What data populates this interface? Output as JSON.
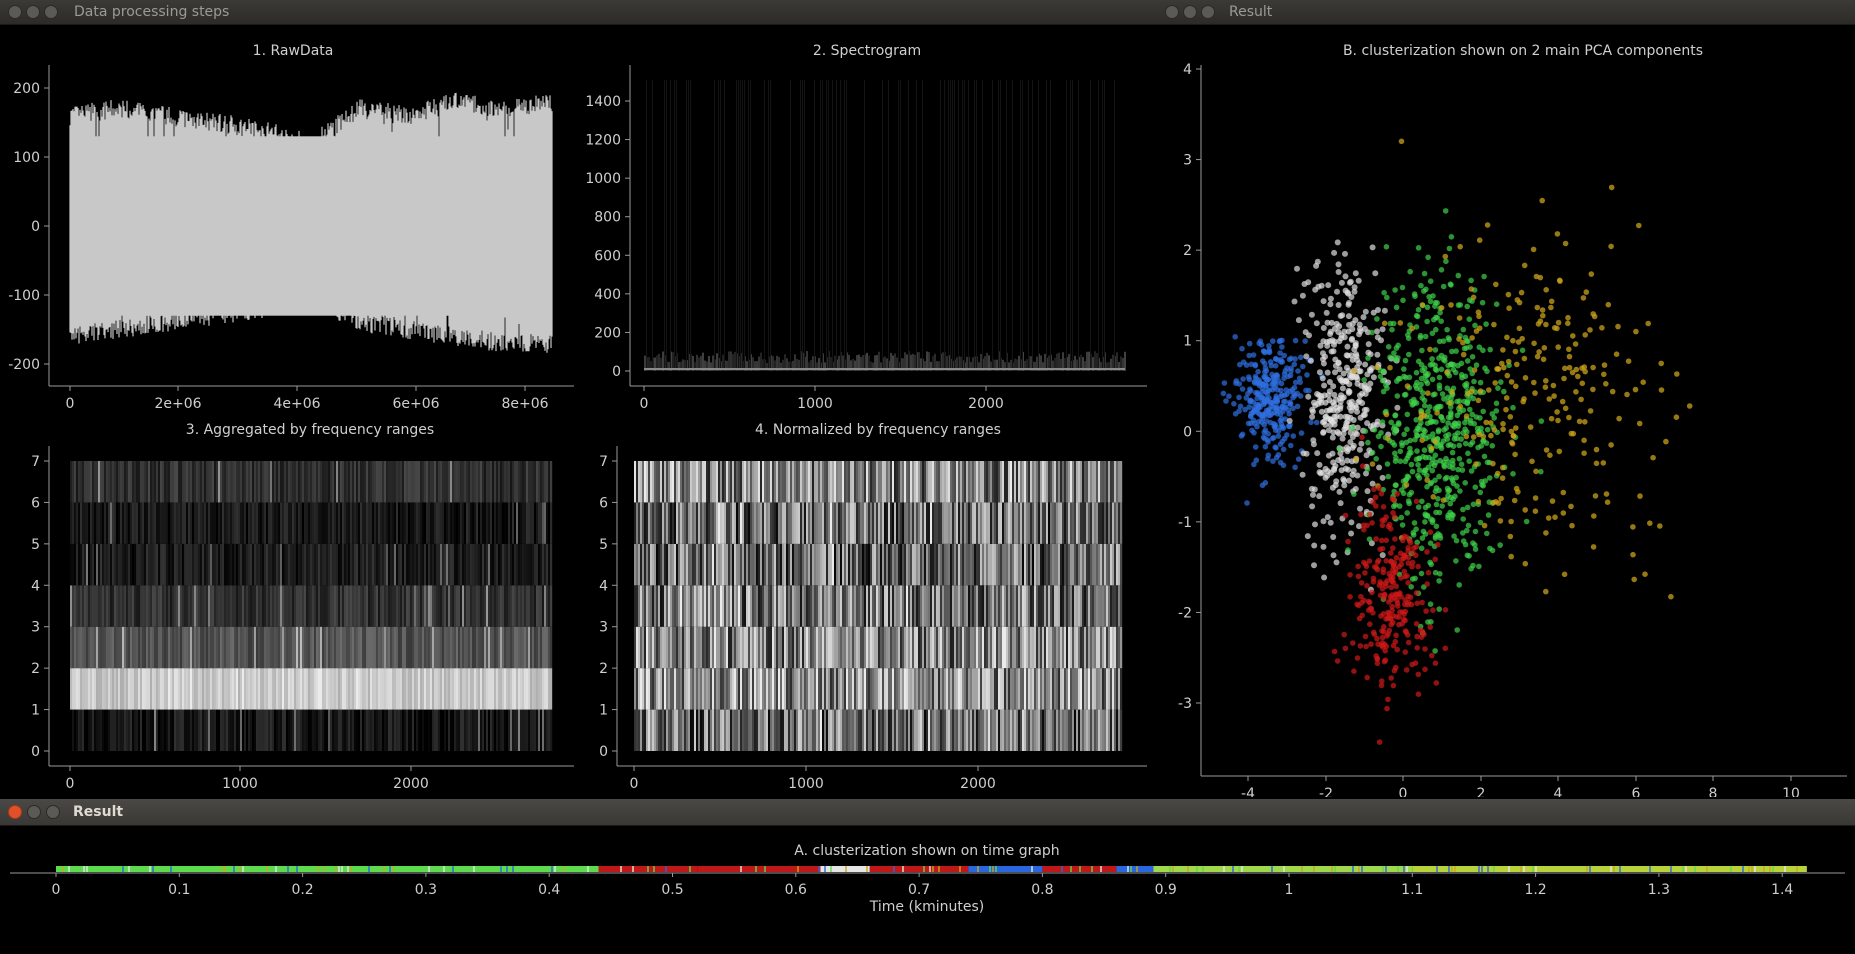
{
  "windows": {
    "steps": {
      "title": "Data processing steps"
    },
    "result_top": {
      "title": "Result"
    },
    "result_bottom": {
      "title": "Result"
    }
  },
  "plots": {
    "raw": {
      "title": "1. RawData",
      "yticks": [
        "200",
        "100",
        "0",
        "-100",
        "-200"
      ],
      "xticks": [
        "0",
        "2e+06",
        "4e+06",
        "6e+06",
        "8e+06"
      ]
    },
    "spectrogram": {
      "title": "2. Spectrogram",
      "yticks": [
        "1400",
        "1200",
        "1000",
        "800",
        "600",
        "400",
        "200",
        "0"
      ],
      "xticks": [
        "0",
        "1000",
        "2000"
      ]
    },
    "aggregated": {
      "title": "3. Aggregated by frequency ranges",
      "yticks": [
        "7",
        "6",
        "5",
        "4",
        "3",
        "2",
        "1",
        "0"
      ],
      "xticks": [
        "0",
        "1000",
        "2000"
      ]
    },
    "normalized": {
      "title": "4. Normalized by frequency ranges",
      "yticks": [
        "7",
        "6",
        "5",
        "4",
        "3",
        "2",
        "1",
        "0"
      ],
      "xticks": [
        "0",
        "1000",
        "2000"
      ]
    },
    "pca": {
      "title": "B. clusterization shown on 2 main PCA components",
      "yticks": [
        "4",
        "3",
        "2",
        "1",
        "0",
        "-1",
        "-2",
        "-3"
      ],
      "xticks": [
        "-4",
        "-2",
        "0",
        "2",
        "4",
        "6",
        "8",
        "10"
      ]
    },
    "timeline": {
      "title": "A. clusterization shown on time graph",
      "xlabel": "Time (kminutes)",
      "xticks": [
        "0",
        "0.1",
        "0.2",
        "0.3",
        "0.4",
        "0.5",
        "0.6",
        "0.7",
        "0.8",
        "0.9",
        "1",
        "1.1",
        "1.2",
        "1.3",
        "1.4"
      ]
    }
  },
  "chart_data": [
    {
      "type": "line",
      "title": "1. RawData",
      "x_range": [
        0,
        8500000
      ],
      "ylim": [
        -210,
        210
      ],
      "envelope_upper_approx": [
        150,
        160,
        150,
        140,
        130,
        110,
        160,
        150,
        170,
        160,
        170
      ],
      "envelope_lower_approx": [
        -150,
        -140,
        -130,
        -120,
        -110,
        -90,
        -130,
        -140,
        -150,
        -160,
        -160
      ]
    },
    {
      "type": "heatmap",
      "title": "2. Spectrogram",
      "x_range": [
        0,
        2800
      ],
      "y_range": [
        0,
        1500
      ]
    },
    {
      "type": "heatmap",
      "title": "3. Aggregated by frequency ranges",
      "x_range": [
        0,
        2800
      ],
      "y_range": [
        0,
        7
      ],
      "band_brightness": [
        0.1,
        0.85,
        0.35,
        0.2,
        0.12,
        0.1,
        0.2
      ]
    },
    {
      "type": "heatmap",
      "title": "4. Normalized by frequency ranges",
      "x_range": [
        0,
        2800
      ],
      "y_range": [
        0,
        7
      ],
      "band_brightness": [
        0.45,
        0.6,
        0.55,
        0.5,
        0.45,
        0.45,
        0.55
      ]
    },
    {
      "type": "scatter",
      "title": "B. clusterization shown on 2 main PCA components",
      "xlim": [
        -4.5,
        11
      ],
      "ylim": [
        -3.5,
        4
      ],
      "series": [
        {
          "color": "#2f6fe0",
          "center": [
            -3.4,
            0.4
          ],
          "spread": [
            0.45,
            0.35
          ]
        },
        {
          "color": "#e0e0e0",
          "center": [
            -1.5,
            0.3
          ],
          "spread": [
            0.5,
            0.75
          ]
        },
        {
          "color": "#3fd24a",
          "center": [
            0.9,
            0.0
          ],
          "spread": [
            0.8,
            0.8
          ]
        },
        {
          "color": "#c9a21a",
          "center": [
            3.3,
            0.4
          ],
          "spread": [
            1.6,
            0.9
          ]
        },
        {
          "color": "#d01818",
          "center": [
            -0.3,
            -1.8
          ],
          "spread": [
            0.5,
            0.55
          ]
        }
      ]
    },
    {
      "type": "bar",
      "title": "A. clusterization shown on time graph",
      "xlabel": "Time (kminutes)",
      "xlim": [
        0,
        1.42
      ],
      "segments": [
        {
          "from": 0.0,
          "to": 0.44,
          "color": "#5cdc4c"
        },
        {
          "from": 0.44,
          "to": 0.52,
          "color": "#c01818"
        },
        {
          "from": 0.52,
          "to": 0.62,
          "color": "#c01818"
        },
        {
          "from": 0.62,
          "to": 0.66,
          "color": "#e6e6e6"
        },
        {
          "from": 0.66,
          "to": 0.74,
          "color": "#c01818"
        },
        {
          "from": 0.74,
          "to": 0.8,
          "color": "#2a66e0"
        },
        {
          "from": 0.8,
          "to": 0.86,
          "color": "#c01818"
        },
        {
          "from": 0.86,
          "to": 0.89,
          "color": "#2a66e0"
        },
        {
          "from": 0.89,
          "to": 1.1,
          "color": "#9fd84a"
        },
        {
          "from": 1.1,
          "to": 1.42,
          "color": "#b8d23a"
        }
      ]
    }
  ]
}
